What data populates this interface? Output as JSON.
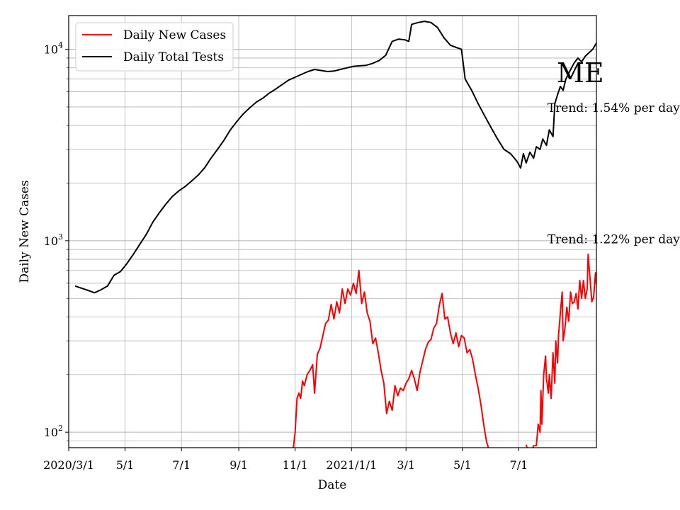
{
  "chart_data": {
    "type": "line",
    "xlabel": "Date",
    "ylabel": "Daily New Cases",
    "y_scale": "log",
    "ylim": [
      83,
      15000
    ],
    "xlim": [
      "2020-03-01",
      "2021-09-23"
    ],
    "grid": true,
    "legend_placement": "top-left",
    "x_ticks": [
      {
        "date": "2020-03-01",
        "label": "2020/3/1"
      },
      {
        "date": "2020-05-01",
        "label": "5/1"
      },
      {
        "date": "2020-07-01",
        "label": "7/1"
      },
      {
        "date": "2020-09-01",
        "label": "9/1"
      },
      {
        "date": "2020-11-01",
        "label": "11/1"
      },
      {
        "date": "2021-01-01",
        "label": "2021/1/1"
      },
      {
        "date": "2021-03-01",
        "label": "3/1"
      },
      {
        "date": "2021-05-01",
        "label": "5/1"
      },
      {
        "date": "2021-07-01",
        "label": "7/1"
      }
    ],
    "y_ticks": [
      {
        "value": 100,
        "base": "10",
        "exp": "2"
      },
      {
        "value": 1000,
        "base": "10",
        "exp": "3"
      },
      {
        "value": 10000,
        "base": "10",
        "exp": "4"
      }
    ],
    "series": [
      {
        "name": "Daily New Cases",
        "color": "#ff0000",
        "points": [
          [
            "2020-10-30",
            82
          ],
          [
            "2020-11-01",
            100
          ],
          [
            "2020-11-03",
            150
          ],
          [
            "2020-11-05",
            160
          ],
          [
            "2020-11-07",
            150
          ],
          [
            "2020-11-09",
            185
          ],
          [
            "2020-11-11",
            175
          ],
          [
            "2020-11-14",
            200
          ],
          [
            "2020-11-17",
            210
          ],
          [
            "2020-11-20",
            225
          ],
          [
            "2020-11-22",
            160
          ],
          [
            "2020-11-25",
            255
          ],
          [
            "2020-11-28",
            275
          ],
          [
            "2020-12-01",
            320
          ],
          [
            "2020-12-04",
            370
          ],
          [
            "2020-12-07",
            385
          ],
          [
            "2020-12-10",
            465
          ],
          [
            "2020-12-13",
            390
          ],
          [
            "2020-12-16",
            480
          ],
          [
            "2020-12-19",
            420
          ],
          [
            "2020-12-22",
            560
          ],
          [
            "2020-12-25",
            470
          ],
          [
            "2020-12-28",
            560
          ],
          [
            "2020-12-31",
            520
          ],
          [
            "2021-01-03",
            600
          ],
          [
            "2021-01-06",
            530
          ],
          [
            "2021-01-09",
            700
          ],
          [
            "2021-01-12",
            470
          ],
          [
            "2021-01-15",
            540
          ],
          [
            "2021-01-18",
            420
          ],
          [
            "2021-01-21",
            380
          ],
          [
            "2021-01-24",
            290
          ],
          [
            "2021-01-27",
            310
          ],
          [
            "2021-01-30",
            260
          ],
          [
            "2021-02-02",
            210
          ],
          [
            "2021-02-05",
            180
          ],
          [
            "2021-02-08",
            125
          ],
          [
            "2021-02-11",
            145
          ],
          [
            "2021-02-14",
            130
          ],
          [
            "2021-02-17",
            175
          ],
          [
            "2021-02-20",
            155
          ],
          [
            "2021-02-23",
            170
          ],
          [
            "2021-02-26",
            165
          ],
          [
            "2021-03-01",
            180
          ],
          [
            "2021-03-04",
            190
          ],
          [
            "2021-03-07",
            210
          ],
          [
            "2021-03-10",
            190
          ],
          [
            "2021-03-13",
            165
          ],
          [
            "2021-03-16",
            205
          ],
          [
            "2021-03-19",
            235
          ],
          [
            "2021-03-22",
            270
          ],
          [
            "2021-03-25",
            295
          ],
          [
            "2021-03-28",
            305
          ],
          [
            "2021-03-31",
            350
          ],
          [
            "2021-04-03",
            370
          ],
          [
            "2021-04-06",
            460
          ],
          [
            "2021-04-09",
            530
          ],
          [
            "2021-04-12",
            390
          ],
          [
            "2021-04-15",
            400
          ],
          [
            "2021-04-18",
            330
          ],
          [
            "2021-04-21",
            290
          ],
          [
            "2021-04-24",
            330
          ],
          [
            "2021-04-27",
            280
          ],
          [
            "2021-04-30",
            320
          ],
          [
            "2021-05-03",
            310
          ],
          [
            "2021-05-06",
            260
          ],
          [
            "2021-05-09",
            270
          ],
          [
            "2021-05-12",
            240
          ],
          [
            "2021-05-15",
            200
          ],
          [
            "2021-05-18",
            170
          ],
          [
            "2021-05-21",
            140
          ],
          [
            "2021-05-24",
            110
          ],
          [
            "2021-05-27",
            90
          ],
          [
            "2021-05-30",
            80
          ]
        ]
      },
      {
        "name": "Daily New Cases",
        "color": "#ff0000",
        "points": [
          [
            "2021-07-09",
            86
          ],
          [
            "2021-07-11",
            80
          ],
          [
            "2021-07-15",
            80
          ],
          [
            "2021-07-17",
            85
          ],
          [
            "2021-07-20",
            85
          ],
          [
            "2021-07-22",
            110
          ],
          [
            "2021-07-24",
            100
          ],
          [
            "2021-07-25",
            165
          ],
          [
            "2021-07-26",
            110
          ],
          [
            "2021-07-28",
            200
          ],
          [
            "2021-07-30",
            250
          ],
          [
            "2021-07-31",
            190
          ],
          [
            "2021-08-02",
            160
          ],
          [
            "2021-08-03",
            200
          ],
          [
            "2021-08-05",
            150
          ],
          [
            "2021-08-07",
            260
          ],
          [
            "2021-08-09",
            180
          ],
          [
            "2021-08-10",
            300
          ],
          [
            "2021-08-12",
            230
          ],
          [
            "2021-08-13",
            320
          ],
          [
            "2021-08-15",
            420
          ],
          [
            "2021-08-17",
            540
          ],
          [
            "2021-08-18",
            300
          ],
          [
            "2021-08-20",
            350
          ],
          [
            "2021-08-22",
            450
          ],
          [
            "2021-08-24",
            380
          ],
          [
            "2021-08-26",
            540
          ],
          [
            "2021-08-28",
            470
          ],
          [
            "2021-08-30",
            480
          ],
          [
            "2021-09-01",
            530
          ],
          [
            "2021-09-03",
            440
          ],
          [
            "2021-09-05",
            620
          ],
          [
            "2021-09-07",
            500
          ],
          [
            "2021-09-09",
            620
          ],
          [
            "2021-09-11",
            500
          ],
          [
            "2021-09-13",
            560
          ],
          [
            "2021-09-14",
            850
          ],
          [
            "2021-09-16",
            640
          ],
          [
            "2021-09-18",
            480
          ],
          [
            "2021-09-20",
            510
          ],
          [
            "2021-09-22",
            680
          ],
          [
            "2021-09-23",
            590
          ]
        ]
      },
      {
        "name": "Daily Total Tests",
        "color": "#000000",
        "points": [
          [
            "2020-03-08",
            580
          ],
          [
            "2020-03-15",
            565
          ],
          [
            "2020-03-22",
            550
          ],
          [
            "2020-03-29",
            535
          ],
          [
            "2020-04-05",
            555
          ],
          [
            "2020-04-12",
            580
          ],
          [
            "2020-04-19",
            660
          ],
          [
            "2020-04-26",
            690
          ],
          [
            "2020-05-03",
            760
          ],
          [
            "2020-05-10",
            850
          ],
          [
            "2020-05-17",
            960
          ],
          [
            "2020-05-24",
            1080
          ],
          [
            "2020-05-31",
            1250
          ],
          [
            "2020-06-07",
            1400
          ],
          [
            "2020-06-14",
            1550
          ],
          [
            "2020-06-21",
            1700
          ],
          [
            "2020-06-28",
            1820
          ],
          [
            "2020-07-05",
            1920
          ],
          [
            "2020-07-12",
            2050
          ],
          [
            "2020-07-19",
            2200
          ],
          [
            "2020-07-26",
            2400
          ],
          [
            "2020-08-02",
            2700
          ],
          [
            "2020-08-09",
            3000
          ],
          [
            "2020-08-16",
            3350
          ],
          [
            "2020-08-23",
            3800
          ],
          [
            "2020-08-30",
            4200
          ],
          [
            "2020-09-06",
            4600
          ],
          [
            "2020-09-13",
            4950
          ],
          [
            "2020-09-20",
            5300
          ],
          [
            "2020-09-27",
            5550
          ],
          [
            "2020-10-04",
            5900
          ],
          [
            "2020-10-11",
            6200
          ],
          [
            "2020-10-18",
            6550
          ],
          [
            "2020-10-25",
            6900
          ],
          [
            "2020-11-01",
            7150
          ],
          [
            "2020-11-08",
            7400
          ],
          [
            "2020-11-15",
            7650
          ],
          [
            "2020-11-22",
            7850
          ],
          [
            "2020-11-29",
            7750
          ],
          [
            "2020-12-06",
            7650
          ],
          [
            "2020-12-13",
            7700
          ],
          [
            "2020-12-20",
            7850
          ],
          [
            "2020-12-27",
            8000
          ],
          [
            "2021-01-03",
            8150
          ],
          [
            "2021-01-10",
            8200
          ],
          [
            "2021-01-17",
            8250
          ],
          [
            "2021-01-24",
            8450
          ],
          [
            "2021-01-31",
            8750
          ],
          [
            "2021-02-07",
            9300
          ],
          [
            "2021-02-14",
            11000
          ],
          [
            "2021-02-21",
            11300
          ],
          [
            "2021-02-28",
            11200
          ],
          [
            "2021-03-04",
            11000
          ],
          [
            "2021-03-07",
            13500
          ],
          [
            "2021-03-14",
            13800
          ],
          [
            "2021-03-21",
            14000
          ],
          [
            "2021-03-28",
            13800
          ],
          [
            "2021-04-04",
            13000
          ],
          [
            "2021-04-11",
            11500
          ],
          [
            "2021-04-18",
            10500
          ],
          [
            "2021-04-25",
            10200
          ],
          [
            "2021-04-30",
            10000
          ],
          [
            "2021-05-04",
            7000
          ],
          [
            "2021-05-11",
            6100
          ],
          [
            "2021-05-18",
            5200
          ],
          [
            "2021-05-25",
            4500
          ],
          [
            "2021-06-01",
            3900
          ],
          [
            "2021-06-08",
            3400
          ],
          [
            "2021-06-15",
            3000
          ],
          [
            "2021-06-22",
            2850
          ],
          [
            "2021-06-29",
            2600
          ],
          [
            "2021-07-03",
            2400
          ],
          [
            "2021-07-06",
            2850
          ],
          [
            "2021-07-09",
            2550
          ],
          [
            "2021-07-13",
            2900
          ],
          [
            "2021-07-17",
            2700
          ],
          [
            "2021-07-20",
            3100
          ],
          [
            "2021-07-24",
            3000
          ],
          [
            "2021-07-27",
            3400
          ],
          [
            "2021-07-31",
            3150
          ],
          [
            "2021-08-03",
            3800
          ],
          [
            "2021-08-07",
            3500
          ],
          [
            "2021-08-09",
            5200
          ],
          [
            "2021-08-12",
            5800
          ],
          [
            "2021-08-15",
            6400
          ],
          [
            "2021-08-18",
            6100
          ],
          [
            "2021-08-21",
            7000
          ],
          [
            "2021-08-24",
            7500
          ],
          [
            "2021-08-27",
            8000
          ],
          [
            "2021-08-30",
            8500
          ],
          [
            "2021-09-03",
            9000
          ],
          [
            "2021-09-07",
            8600
          ],
          [
            "2021-09-11",
            9200
          ],
          [
            "2021-09-15",
            9600
          ],
          [
            "2021-09-19",
            10000
          ],
          [
            "2021-09-23",
            10800
          ]
        ]
      }
    ],
    "legend": [
      {
        "label": "Daily New Cases",
        "color": "#ff0000"
      },
      {
        "label": "Daily Total Tests",
        "color": "#000000"
      }
    ],
    "annotations": [
      {
        "text": "Trend: 1.54% per day",
        "anchor_date": "2021-08-01",
        "anchor_value": 4700
      },
      {
        "text": "Trend: 1.22% per day",
        "anchor_date": "2021-08-01",
        "anchor_value": 970
      }
    ],
    "state_label": "ME"
  }
}
